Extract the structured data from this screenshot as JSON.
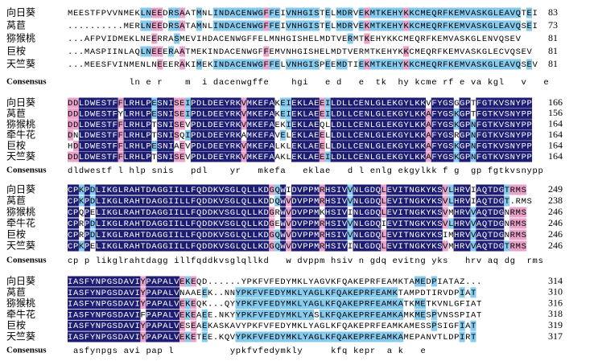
{
  "consensus_label": "Consensus",
  "blocks": [
    {
      "rows": [
        {
          "name": "向日葵",
          "seq": "MEESTFPVVNMEKLNEEDRSAATMNLINDACENWGFFEIVNHGISTELMDRVEKMTKEHYKKCMEQRFKEMVASKGLEAVQTEI",
          "num": "83"
        },
        {
          "name": "莴苣",
          "seq": "..........MERLNEEDRSATAMNLINDACENWGFFEIVNHGISTELMDRVEKMTKEHYKKCMEQRFKEMVASKGLEAVQSEI",
          "num": "73"
        },
        {
          "name": "猕猴桃",
          "seq": "...AFPVIDMEKLNEERRASMEVIHDACENWGFFELMNHGISHELMDTVERMTKEHYKKCMEQRFKEMVASKGLENVQSEV",
          "num": "81"
        },
        {
          "name": "巨桉",
          "seq": "...MASPIINLAQLNEEERAATMEKINDACENWGFFEMVNHGISHELMDTVERMTKEHYKKCMEQRFKEMVASKGLECVQSEV",
          "num": "81"
        },
        {
          "name": "天竺葵",
          "seq": "...MEESFVINMENLNEEERAKIMEKINDACENWGFFELVNHGISPEEMDTIEKMTKEHYKKCMEQRFKEMVASKGLEAVQSEV",
          "num": "81"
        }
      ],
      "consensus": "           ln e r    m  i dacenwgffe    hgi   e d   e  tk  hy kcme rf e va kgl   v   e"
    },
    {
      "rows": [
        {
          "name": "向日葵",
          "seq": "DDLDWESTFFLRHLPESNISEIPDLDEEYRKVMKEFAKEIEKLAEEILDLLCENLGLEKGYLKKVFYGSGGPTFGTKVSNYPP",
          "num": "166"
        },
        {
          "name": "莴苣",
          "seq": "DDLDWESTFYLRHLPESNISEIPDLDEEYRKVMKEFAKEIEKLAEEILDLLCENLGLEKGYLKKAFYGSKGPTFGTKVSNYPP",
          "num": "156"
        },
        {
          "name": "猕猴桃",
          "seq": "DDLDWESTFFLRHLPTSNISEVPDLDEEYRKVMKEFAEKIEKLAEQLLDLLCENLGLEKGYLKKAFYGSKGPNFGTKVSNYPP",
          "num": "164"
        },
        {
          "name": "牵牛花",
          "seq": "DNLDWESTFFLRHLPTSNISQIPDLDEEYRKAMKEFAVELEKLAEELLDLLCENLGLEKGYLKKAFYGSRGPNFGTKVSNYPP",
          "num": "164"
        },
        {
          "name": "巨桉",
          "seq": "HDLDWESTFFLRHLPESNIAEVPDLDEEYRKVMKEFALKLEKLAEELLDLLCENLGLEKGYLKKAFYGSKGPNFGTKVSNYPP",
          "num": "164"
        },
        {
          "name": "天竺葵",
          "seq": "DDLDWESTFFLRHLPTSNISEVPDLDEEYRKVMKEFAAKLEKLAEEILDLLCENLGLEKGYLKKAFYGSKGPNFGTKVSNYPP",
          "num": "164"
        }
      ],
      "consensus": "dldwestf l hlp snis   pdl    yr   mkefa   eklae   d l enlg ekgylkk f g  gp fgtkvsnypp"
    },
    {
      "rows": [
        {
          "name": "向日葵",
          "seq": "CPKPDLIKGLRAHTDAGGIILLFQDDKVSGLQLLKDGQWIDVPPMRHSIVVNLGDQLEVITNGKYKSVLHRVIAQTDGTRMS",
          "num": "249"
        },
        {
          "name": "莴苣",
          "seq": "CPKPDLIKGLRAHTDAGGIILLFQDDKVSGLQLLKDDQWVDVPPMRHSIVVNLGDQLEVITNGKYKSVLHRVIAQTDGT.RMS",
          "num": "238"
        },
        {
          "name": "猕猴桃",
          "seq": "CPQPELIKGLRAHTDAGGIILLFQDDKVSGLQLLKDGRWVDVPPMKHSIVINLGDQLEVITNGKYKSVMHRVVAQTDGNRMS",
          "num": "246"
        },
        {
          "name": "牵牛花",
          "seq": "CPRPDLIKGLRAHTDAGGIILLFQDDKVSGLQLLKDGEWVDVPPMRHSIVVNLGDQIEVITNGKYKSVLHRVVAQTDGNRMS",
          "num": "246"
        },
        {
          "name": "巨桉",
          "seq": "CPRPDLIKGLRAHTDAGGIILLFQDDKVSGLQLLKDGQWVDVPPMRHSIVVNLGDQLEVITNGKYKSIMHRVVAQTDGNRMS",
          "num": "246"
        },
        {
          "name": "天竺葵",
          "seq": "CPKPELIKGLRAHTDAGGIILLFQDDKVSGLQLLKDGQWVDVPPMRHSIVINLGDQLEVITNGKYKSVMHRVVAQTDGTRMS",
          "num": "246"
        }
      ],
      "consensus": "cp p likglrahtdagg illfqddkvsglqllkd   w dvppm hsiv n gdq evitng yks   hrv aq dg  rms"
    },
    {
      "rows": [
        {
          "name": "向日葵",
          "seq": "IASFYNPGSDAVIYPAPALVEKEQD......YPKFVFEDYMKLYAGVKFQAKEPRFEAMKTAMEDPIATAZ...",
          "num": "314"
        },
        {
          "name": "莴苣",
          "seq": "IASFYNPGSDAVIYPAPALVNAAEEK..NNYPKFVFEDYMKLYAGLKFQAKEPRFEAMKTAMPDTIRVDPIAT",
          "num": "310"
        },
        {
          "name": "猕猴桃",
          "seq": "IASFYNPGSDAVIYPAPALVEKEQK...QYYPKFVFEDYMKLYAGLKFQAKEPRFEAMKATKMETKVNLGFIAT",
          "num": "316"
        },
        {
          "name": "牵牛花",
          "seq": "IASFYNPGSDAVIFPAPALVEKEAEE.NKYYPKFVFEDYMKLYASLKFQAKEPRFEAMKAMKMESPVNSSPIAT",
          "num": "318"
        },
        {
          "name": "巨桉",
          "seq": "IASFYNPGSDAVIYPAPALVESEAEKASKAVYPKFVFEDYMKLYAGLKFQAKEPRFEAMKAMESSPSIGFIAT",
          "num": "319"
        },
        {
          "name": "天竺葵",
          "seq": "IASFYNPGSDAVIYPAPALVEKETEE.KQVYPKFVFEDYMKLYAGLKFQAKEPRFEAMKAMEPANVTLDPIRT",
          "num": "317"
        }
      ],
      "consensus": " asfynpgs avi pap l          ypkfvfedymkly     kfq kepr  a k   e"
    }
  ]
}
